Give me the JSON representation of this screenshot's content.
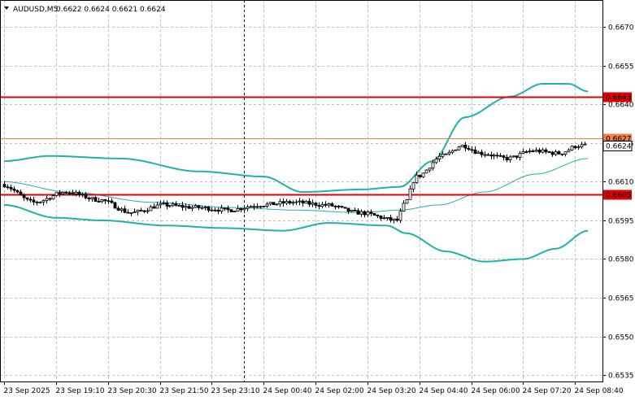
{
  "header": {
    "symbol": "AUDUSD,M5",
    "ohlc": "0.6622 0.6624 0.6621 0.6624"
  },
  "colors": {
    "background": "#ffffff",
    "grid": "#c0c0c0",
    "candle": "#000000",
    "bands": "#20b2aa",
    "level_red": "#e00000",
    "level_orange": "#f08040",
    "current_price_box": "#ffffff"
  },
  "chart_data": {
    "type": "candlestick",
    "instrument": "AUDUSD",
    "timeframe": "M5",
    "ylim": [
      0.65325,
      0.66805
    ],
    "y_ticks": [
      "0.6670",
      "0.6655",
      "0.6640",
      "0.6625",
      "0.6610",
      "0.6595",
      "0.6580",
      "0.6565",
      "0.6550",
      "0.6535"
    ],
    "y_tick_values": [
      0.667,
      0.6655,
      0.664,
      0.6625,
      0.661,
      0.6595,
      0.658,
      0.6565,
      0.655,
      0.6535
    ],
    "x_ticks": [
      "23 Sep 2025",
      "23 Sep 19:10",
      "23 Sep 20:30",
      "23 Sep 21:50",
      "23 Sep 23:10",
      "24 Sep 00:40",
      "24 Sep 02:00",
      "24 Sep 03:20",
      "24 Sep 04:40",
      "24 Sep 06:00",
      "24 Sep 07:20",
      "24 Sep 08:40"
    ],
    "x_tick_index": [
      0,
      16,
      32,
      48,
      64,
      80,
      96,
      112,
      128,
      144,
      160,
      176
    ],
    "bar_count": 180,
    "levels": [
      {
        "label": "0.6643",
        "value": 0.6643,
        "color": "#e00000"
      },
      {
        "label": "0.6627",
        "value": 0.6627,
        "color": "#f08040"
      },
      {
        "label": "0.6605",
        "value": 0.6605,
        "color": "#e00000"
      }
    ],
    "current_price": {
      "label": "0.6624",
      "value": 0.6624
    },
    "session_marker_index": 74,
    "closes": [
      [
        0,
        0.6609
      ],
      [
        10,
        0.6602
      ],
      [
        20,
        0.6606
      ],
      [
        30,
        0.6603
      ],
      [
        40,
        0.6598
      ],
      [
        50,
        0.6601
      ],
      [
        60,
        0.66
      ],
      [
        70,
        0.6599
      ],
      [
        80,
        0.6601
      ],
      [
        90,
        0.6602
      ],
      [
        100,
        0.6601
      ],
      [
        110,
        0.6598
      ],
      [
        122,
        0.6595
      ],
      [
        124,
        0.6601
      ],
      [
        128,
        0.6612
      ],
      [
        136,
        0.662
      ],
      [
        142,
        0.6624
      ],
      [
        148,
        0.6621
      ],
      [
        156,
        0.6619
      ],
      [
        164,
        0.6622
      ],
      [
        172,
        0.6621
      ],
      [
        178,
        0.6624
      ]
    ],
    "bands_upper": [
      [
        0,
        0.6618
      ],
      [
        14,
        0.662
      ],
      [
        36,
        0.6619
      ],
      [
        60,
        0.6614
      ],
      [
        80,
        0.6612
      ],
      [
        92,
        0.6606
      ],
      [
        110,
        0.6607
      ],
      [
        122,
        0.6608
      ],
      [
        132,
        0.6618
      ],
      [
        142,
        0.6635
      ],
      [
        156,
        0.6643
      ],
      [
        166,
        0.6648
      ],
      [
        174,
        0.6648
      ],
      [
        180,
        0.6645
      ]
    ],
    "bands_middle": [
      [
        0,
        0.661
      ],
      [
        20,
        0.6606
      ],
      [
        46,
        0.6602
      ],
      [
        70,
        0.66
      ],
      [
        90,
        0.6599
      ],
      [
        110,
        0.6598
      ],
      [
        122,
        0.6599
      ],
      [
        134,
        0.6601
      ],
      [
        148,
        0.6606
      ],
      [
        164,
        0.6613
      ],
      [
        180,
        0.6619
      ]
    ],
    "bands_lower": [
      [
        0,
        0.6601
      ],
      [
        16,
        0.6596
      ],
      [
        30,
        0.6595
      ],
      [
        50,
        0.6593
      ],
      [
        68,
        0.6592
      ],
      [
        86,
        0.6591
      ],
      [
        100,
        0.6594
      ],
      [
        118,
        0.6593
      ],
      [
        124,
        0.659
      ],
      [
        136,
        0.6583
      ],
      [
        148,
        0.6579
      ],
      [
        160,
        0.658
      ],
      [
        170,
        0.6584
      ],
      [
        180,
        0.6591
      ]
    ]
  }
}
